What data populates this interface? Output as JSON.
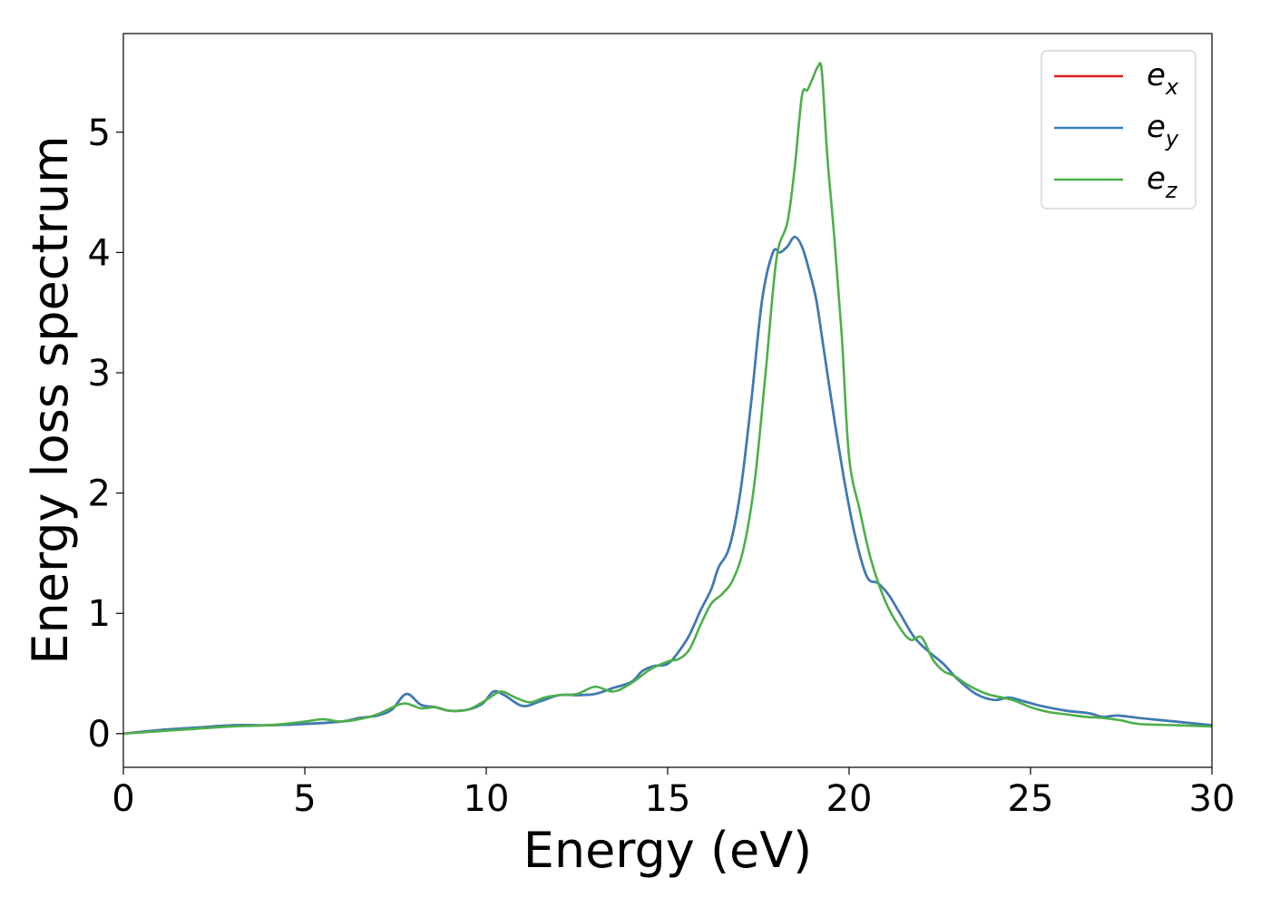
{
  "chart_data": {
    "type": "line",
    "xlabel": "Energy (eV)",
    "ylabel": "Energy loss spectrum",
    "xlim": [
      0,
      30
    ],
    "ylim": [
      -0.28,
      5.82
    ],
    "xticks": [
      0,
      5,
      10,
      15,
      20,
      25,
      30
    ],
    "xtick_labels": [
      "0",
      "5",
      "10",
      "15",
      "20",
      "25",
      "30"
    ],
    "yticks": [
      0,
      1,
      2,
      3,
      4,
      5
    ],
    "ytick_labels": [
      "0",
      "1",
      "2",
      "3",
      "4",
      "5"
    ],
    "grid": false,
    "legend_position": "top-right",
    "series": [
      {
        "name": "e_x",
        "label_base": "e",
        "label_sub": "x",
        "color": "#e41a1c",
        "x": [
          0,
          1,
          2,
          3,
          4,
          5,
          6,
          6.5,
          7,
          7.4,
          7.8,
          8.2,
          8.6,
          9,
          9.5,
          9.9,
          10.2,
          10.5,
          11,
          11.5,
          12,
          12.5,
          13,
          13.5,
          14,
          14.3,
          14.6,
          15,
          15.3,
          15.6,
          15.9,
          16.2,
          16.4,
          16.7,
          17,
          17.3,
          17.6,
          17.9,
          18.1,
          18.3,
          18.5,
          18.7,
          18.9,
          19.1,
          19.3,
          19.6,
          19.9,
          20.2,
          20.5,
          20.8,
          21.1,
          21.4,
          21.8,
          22.2,
          22.6,
          23,
          23.5,
          24,
          24.4,
          24.8,
          25.3,
          26,
          26.6,
          27,
          27.4,
          28,
          29,
          30
        ],
        "y": [
          0,
          0.03,
          0.05,
          0.07,
          0.07,
          0.08,
          0.1,
          0.13,
          0.15,
          0.2,
          0.33,
          0.24,
          0.22,
          0.19,
          0.2,
          0.25,
          0.35,
          0.32,
          0.23,
          0.27,
          0.32,
          0.32,
          0.33,
          0.38,
          0.43,
          0.52,
          0.56,
          0.58,
          0.68,
          0.82,
          1.02,
          1.2,
          1.38,
          1.55,
          2.0,
          2.75,
          3.6,
          4.0,
          4.0,
          4.05,
          4.13,
          4.05,
          3.85,
          3.6,
          3.2,
          2.6,
          2.05,
          1.6,
          1.3,
          1.25,
          1.15,
          1.0,
          0.8,
          0.68,
          0.58,
          0.45,
          0.33,
          0.28,
          0.3,
          0.27,
          0.23,
          0.19,
          0.17,
          0.14,
          0.15,
          0.13,
          0.1,
          0.07
        ]
      },
      {
        "name": "e_y",
        "label_base": "e",
        "label_sub": "y",
        "color": "#377eb8",
        "x": [
          0,
          1,
          2,
          3,
          4,
          5,
          6,
          6.5,
          7,
          7.4,
          7.8,
          8.2,
          8.6,
          9,
          9.5,
          9.9,
          10.2,
          10.5,
          11,
          11.5,
          12,
          12.5,
          13,
          13.5,
          14,
          14.3,
          14.6,
          15,
          15.3,
          15.6,
          15.9,
          16.2,
          16.4,
          16.7,
          17,
          17.3,
          17.6,
          17.9,
          18.1,
          18.3,
          18.5,
          18.7,
          18.9,
          19.1,
          19.3,
          19.6,
          19.9,
          20.2,
          20.5,
          20.8,
          21.1,
          21.4,
          21.8,
          22.2,
          22.6,
          23,
          23.5,
          24,
          24.4,
          24.8,
          25.3,
          26,
          26.6,
          27,
          27.4,
          28,
          29,
          30
        ],
        "y": [
          0,
          0.03,
          0.05,
          0.07,
          0.07,
          0.08,
          0.1,
          0.13,
          0.15,
          0.2,
          0.33,
          0.24,
          0.22,
          0.19,
          0.2,
          0.25,
          0.35,
          0.32,
          0.23,
          0.27,
          0.32,
          0.32,
          0.33,
          0.38,
          0.43,
          0.52,
          0.56,
          0.58,
          0.68,
          0.82,
          1.02,
          1.2,
          1.38,
          1.55,
          2.0,
          2.75,
          3.6,
          4.0,
          4.0,
          4.05,
          4.13,
          4.05,
          3.85,
          3.6,
          3.2,
          2.6,
          2.05,
          1.6,
          1.3,
          1.25,
          1.15,
          1.0,
          0.8,
          0.68,
          0.58,
          0.45,
          0.33,
          0.28,
          0.3,
          0.27,
          0.23,
          0.19,
          0.17,
          0.14,
          0.15,
          0.13,
          0.1,
          0.07
        ]
      },
      {
        "name": "e_z",
        "label_base": "e",
        "label_sub": "z",
        "color": "#4daf4a",
        "x": [
          0,
          1,
          2,
          3,
          4,
          5,
          5.5,
          6,
          6.5,
          7,
          7.5,
          7.8,
          8.2,
          8.6,
          9,
          9.5,
          10,
          10.4,
          10.8,
          11.2,
          11.6,
          12,
          12.5,
          13,
          13.5,
          14,
          14.5,
          15,
          15.3,
          15.6,
          15.9,
          16.2,
          16.5,
          16.8,
          17.1,
          17.4,
          17.7,
          18.0,
          18.3,
          18.5,
          18.7,
          18.85,
          19.0,
          19.15,
          19.25,
          19.4,
          19.6,
          19.8,
          20.0,
          20.3,
          20.6,
          21.0,
          21.4,
          21.7,
          22.0,
          22.3,
          22.6,
          22.9,
          23.3,
          23.8,
          24.5,
          25,
          25.5,
          26,
          26.5,
          27,
          27.5,
          28,
          29,
          30
        ],
        "y": [
          0,
          0.02,
          0.04,
          0.06,
          0.07,
          0.1,
          0.12,
          0.1,
          0.12,
          0.16,
          0.23,
          0.25,
          0.21,
          0.22,
          0.19,
          0.2,
          0.28,
          0.35,
          0.3,
          0.26,
          0.3,
          0.32,
          0.33,
          0.39,
          0.35,
          0.42,
          0.53,
          0.6,
          0.62,
          0.7,
          0.9,
          1.08,
          1.16,
          1.28,
          1.55,
          2.1,
          3.0,
          3.95,
          4.25,
          4.7,
          5.3,
          5.35,
          5.45,
          5.55,
          5.5,
          4.8,
          4.1,
          3.3,
          2.3,
          1.85,
          1.45,
          1.1,
          0.88,
          0.78,
          0.8,
          0.62,
          0.52,
          0.48,
          0.4,
          0.33,
          0.28,
          0.22,
          0.18,
          0.16,
          0.14,
          0.13,
          0.11,
          0.08,
          0.07,
          0.06
        ]
      }
    ]
  }
}
